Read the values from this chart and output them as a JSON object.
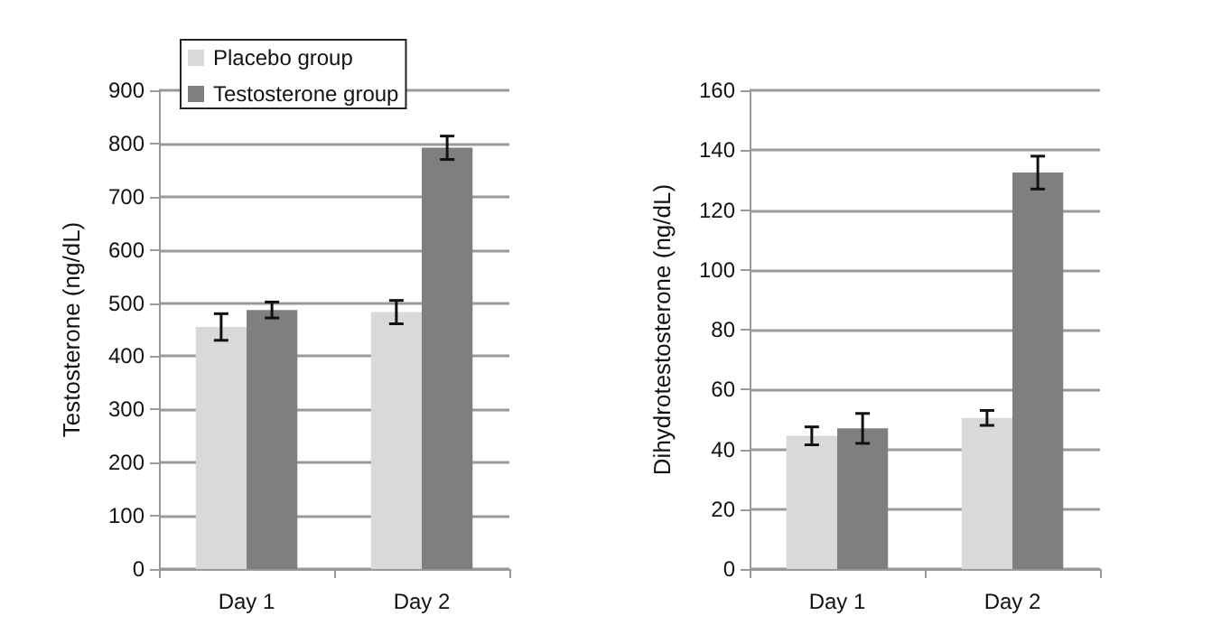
{
  "chart_data": [
    {
      "type": "bar",
      "ylabel": "Testosterone (ng/dL)",
      "categories": [
        "Day 1",
        "Day 2"
      ],
      "series": [
        {
          "name": "Placebo group",
          "color": "#d9d9d9",
          "values": [
            455,
            483
          ],
          "errors": [
            25,
            22
          ]
        },
        {
          "name": "Testosterone group",
          "color": "#7f7f7f",
          "values": [
            487,
            792
          ],
          "errors": [
            15,
            22
          ]
        }
      ],
      "ylim": [
        0,
        900
      ],
      "yticks": [
        0,
        100,
        200,
        300,
        400,
        500,
        600,
        700,
        800,
        900
      ],
      "grid": "y",
      "legend": "top left"
    },
    {
      "type": "bar",
      "ylabel": "Dihydrotestosterone (ng/dL)",
      "categories": [
        "Day 1",
        "Day 2"
      ],
      "series": [
        {
          "color": "#d9d9d9",
          "values": [
            44.5,
            50.5
          ],
          "errors": [
            3,
            2.5
          ]
        },
        {
          "color": "#7f7f7f",
          "values": [
            47,
            132.5
          ],
          "errors": [
            5,
            5.5
          ]
        }
      ],
      "ylim": [
        0,
        160
      ],
      "yticks": [
        0,
        20,
        40,
        60,
        80,
        100,
        120,
        140,
        160
      ],
      "grid": "y"
    }
  ]
}
